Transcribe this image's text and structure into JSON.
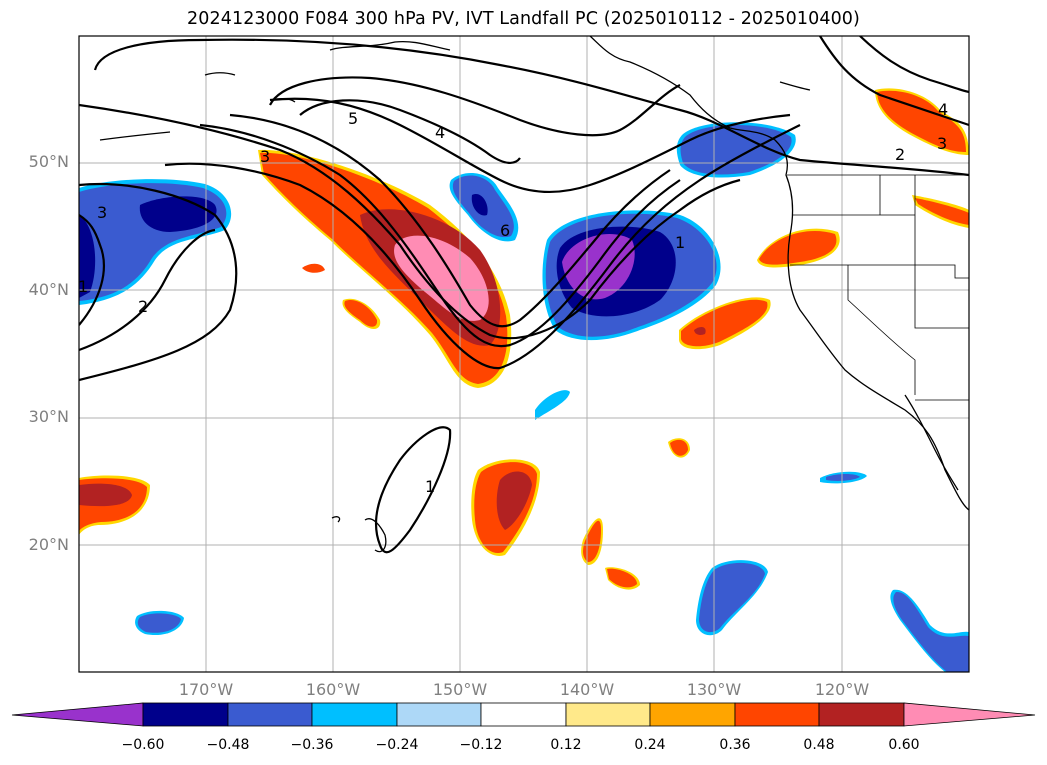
{
  "title": "2024123000 F084 300 hPa PV, IVT Landfall PC (2025010112 - 2025010400)",
  "lat_labels": [
    "50°N",
    "40°N",
    "30°N",
    "20°N"
  ],
  "lon_labels": [
    "170°W",
    "160°W",
    "150°W",
    "140°W",
    "130°W",
    "120°W"
  ],
  "pv_contour_labels": [
    "1",
    "2",
    "3",
    "4",
    "5",
    "6"
  ],
  "colorbar": {
    "ticks": [
      "−0.60",
      "−0.48",
      "−0.36",
      "−0.24",
      "−0.12",
      "0.12",
      "0.24",
      "0.36",
      "0.48",
      "0.60"
    ],
    "colors": [
      "#9932cc",
      "#00008b",
      "#3a5bd0",
      "#00bfff",
      "#add8f7",
      "#ffffff",
      "#ffe98a",
      "#ffa500",
      "#ff4500",
      "#b22222",
      "#ff8cb4"
    ]
  }
}
